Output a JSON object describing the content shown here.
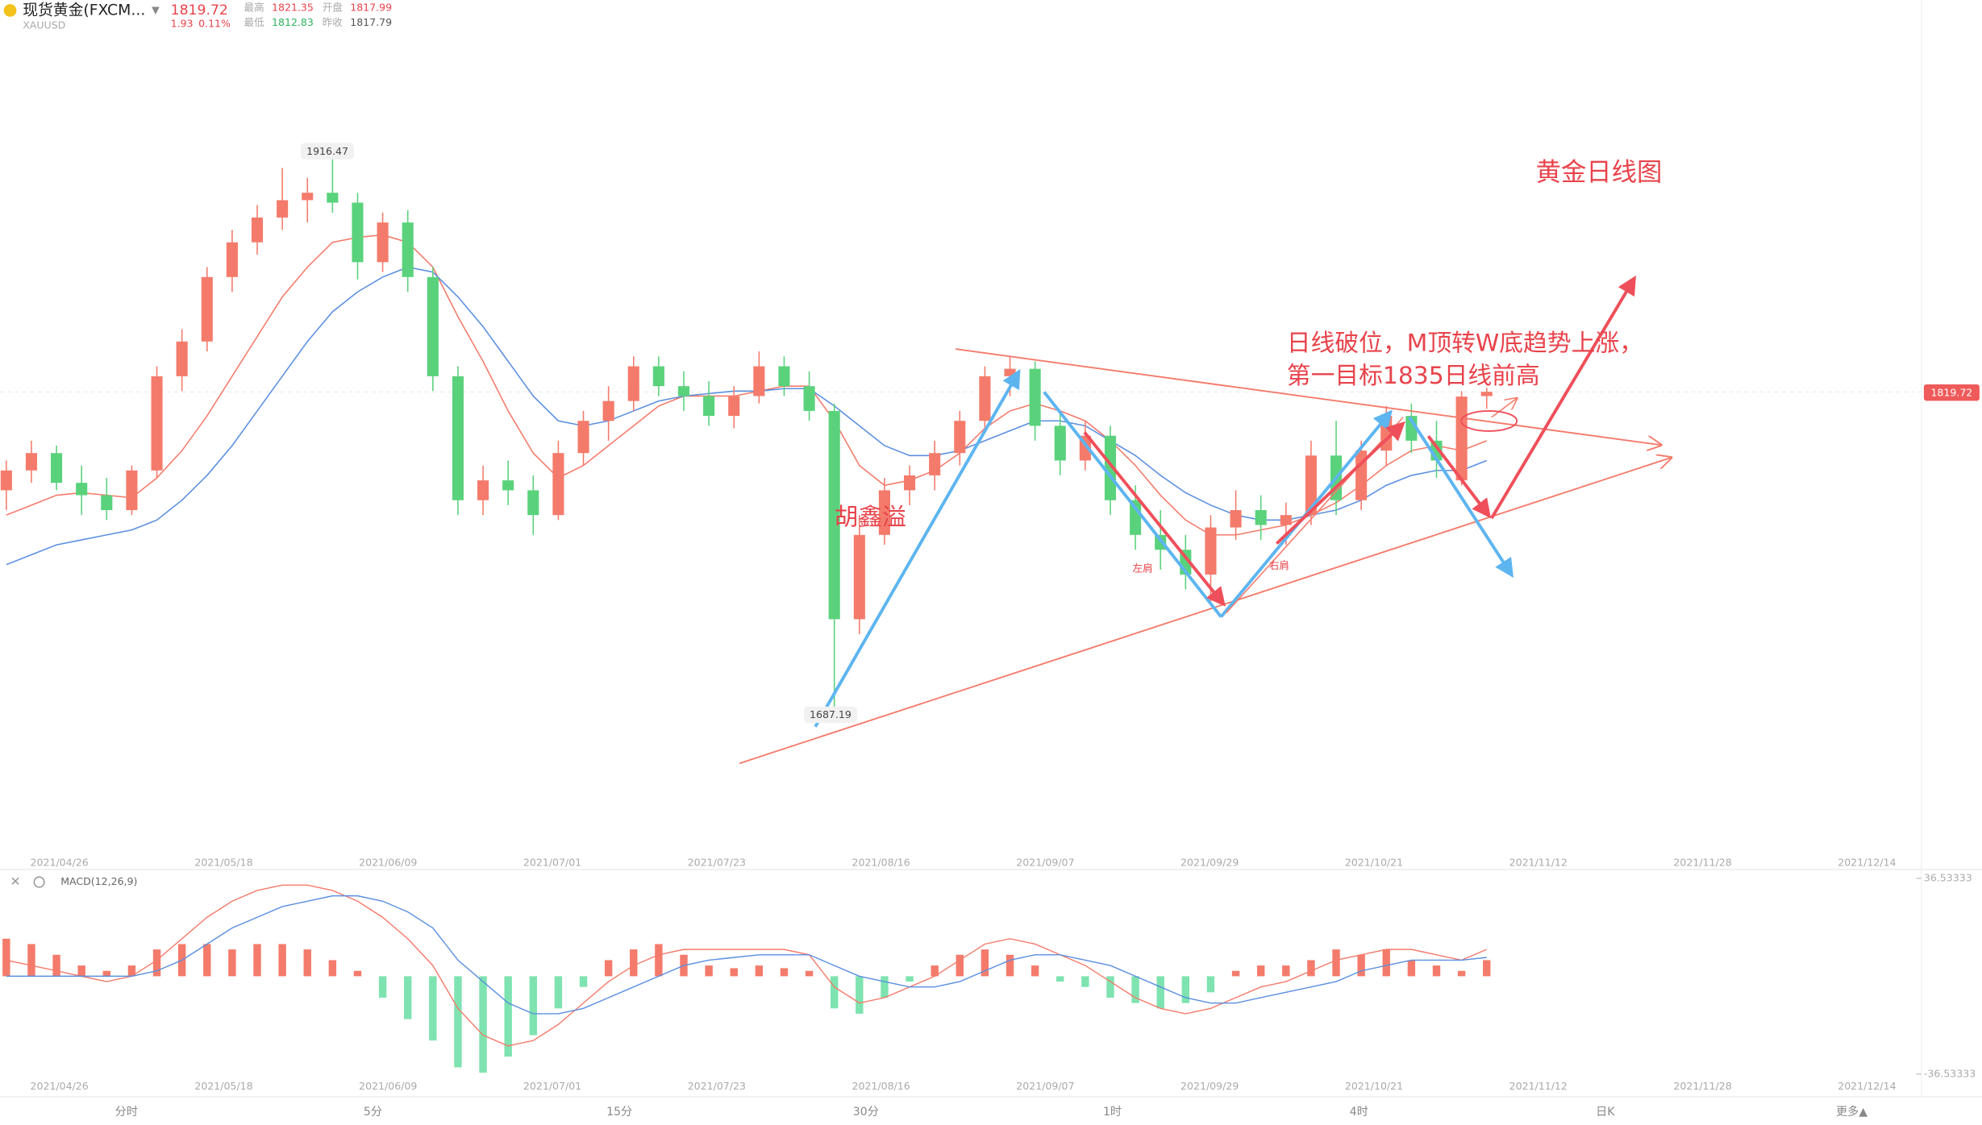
{
  "header": {
    "name": "现货黄金(FXCM...",
    "symbol": "XAUUSD",
    "price": 1819.72,
    "change": 1.93,
    "change_pct": "0.11%",
    "high_label": "最高",
    "high": 1821.35,
    "open_label": "开盘",
    "open": 1817.99,
    "low_label": "最低",
    "low": 1812.83,
    "prev_label": "昨收",
    "prev": 1817.79
  },
  "toolbar": {
    "timeframes": [
      "分时",
      "5分",
      "15分",
      "30分",
      "1时",
      "4时",
      "日K",
      "更多▲"
    ]
  },
  "chart_data": {
    "type": "candlestick",
    "up_color": "#f47b6b",
    "down_color": "#5ad27c",
    "ylim": [
      1645,
      1975
    ],
    "x_labels": [
      "2021/04/26",
      "2021/05/18",
      "2021/06/09",
      "2021/07/01",
      "2021/07/23",
      "2021/08/16",
      "2021/09/07",
      "2021/09/29",
      "2021/10/21",
      "2021/11/12",
      "2021/11/28",
      "2021/12/14"
    ],
    "ohlc": [
      [
        1780,
        1792,
        1772,
        1788
      ],
      [
        1788,
        1800,
        1783,
        1795
      ],
      [
        1795,
        1798,
        1780,
        1783
      ],
      [
        1783,
        1790,
        1770,
        1778
      ],
      [
        1778,
        1785,
        1768,
        1772
      ],
      [
        1772,
        1790,
        1770,
        1788
      ],
      [
        1788,
        1830,
        1785,
        1826
      ],
      [
        1826,
        1845,
        1820,
        1840
      ],
      [
        1840,
        1870,
        1836,
        1866
      ],
      [
        1866,
        1885,
        1860,
        1880
      ],
      [
        1880,
        1895,
        1875,
        1890
      ],
      [
        1890,
        1910,
        1885,
        1897
      ],
      [
        1897,
        1906,
        1888,
        1900
      ],
      [
        1900,
        1916.47,
        1892,
        1896
      ],
      [
        1896,
        1900,
        1865,
        1872
      ],
      [
        1872,
        1892,
        1868,
        1888
      ],
      [
        1888,
        1893,
        1860,
        1866
      ],
      [
        1866,
        1870,
        1820,
        1826
      ],
      [
        1826,
        1830,
        1770,
        1776
      ],
      [
        1776,
        1790,
        1770,
        1784
      ],
      [
        1784,
        1792,
        1774,
        1780
      ],
      [
        1780,
        1786,
        1762,
        1770
      ],
      [
        1770,
        1800,
        1768,
        1795
      ],
      [
        1795,
        1812,
        1790,
        1808
      ],
      [
        1808,
        1822,
        1800,
        1816
      ],
      [
        1816,
        1834,
        1812,
        1830
      ],
      [
        1830,
        1834,
        1818,
        1822
      ],
      [
        1822,
        1828,
        1812,
        1818
      ],
      [
        1818,
        1824,
        1806,
        1810
      ],
      [
        1810,
        1822,
        1805,
        1818
      ],
      [
        1818,
        1836,
        1815,
        1830
      ],
      [
        1830,
        1834,
        1818,
        1822
      ],
      [
        1822,
        1828,
        1808,
        1812
      ],
      [
        1812,
        1815,
        1687.19,
        1728
      ],
      [
        1728,
        1770,
        1722,
        1762
      ],
      [
        1762,
        1785,
        1758,
        1780
      ],
      [
        1780,
        1790,
        1774,
        1786
      ],
      [
        1786,
        1800,
        1780,
        1795
      ],
      [
        1795,
        1812,
        1790,
        1808
      ],
      [
        1808,
        1830,
        1805,
        1826
      ],
      [
        1826,
        1834,
        1818,
        1829
      ],
      [
        1829,
        1832,
        1800,
        1806
      ],
      [
        1806,
        1812,
        1786,
        1792
      ],
      [
        1792,
        1808,
        1788,
        1802
      ],
      [
        1802,
        1806,
        1770,
        1776
      ],
      [
        1776,
        1782,
        1756,
        1762
      ],
      [
        1762,
        1772,
        1748,
        1756
      ],
      [
        1756,
        1762,
        1740,
        1746
      ],
      [
        1746,
        1770,
        1735,
        1765
      ],
      [
        1765,
        1780,
        1760,
        1772
      ],
      [
        1772,
        1778,
        1760,
        1766
      ],
      [
        1766,
        1775,
        1758,
        1770
      ],
      [
        1770,
        1800,
        1766,
        1794
      ],
      [
        1794,
        1808,
        1770,
        1776
      ],
      [
        1776,
        1800,
        1772,
        1796
      ],
      [
        1796,
        1814,
        1790,
        1810
      ],
      [
        1810,
        1815,
        1795,
        1800
      ],
      [
        1800,
        1808,
        1785,
        1792
      ],
      [
        1784,
        1820,
        1782,
        1817.79
      ],
      [
        1817.99,
        1821.35,
        1812.83,
        1819.72
      ]
    ],
    "ma": [
      {
        "color": "#f47b6b",
        "values": [
          1770,
          1774,
          1778,
          1779,
          1778,
          1777,
          1785,
          1796,
          1810,
          1826,
          1842,
          1858,
          1870,
          1880,
          1882,
          1883,
          1880,
          1870,
          1850,
          1832,
          1812,
          1795,
          1785,
          1790,
          1798,
          1806,
          1814,
          1818,
          1818,
          1818,
          1820,
          1822,
          1822,
          1808,
          1790,
          1782,
          1784,
          1788,
          1795,
          1805,
          1812,
          1815,
          1812,
          1808,
          1800,
          1790,
          1778,
          1768,
          1762,
          1762,
          1764,
          1766,
          1770,
          1775,
          1782,
          1790,
          1796,
          1798,
          1796,
          1800
        ]
      },
      {
        "color": "#5b8fe0",
        "values": [
          1750,
          1754,
          1758,
          1760,
          1762,
          1764,
          1768,
          1776,
          1786,
          1798,
          1812,
          1826,
          1840,
          1852,
          1860,
          1866,
          1870,
          1868,
          1858,
          1846,
          1832,
          1818,
          1808,
          1806,
          1808,
          1812,
          1816,
          1818,
          1819,
          1820,
          1820,
          1821,
          1821,
          1814,
          1806,
          1798,
          1794,
          1794,
          1796,
          1800,
          1804,
          1808,
          1808,
          1806,
          1800,
          1794,
          1786,
          1779,
          1774,
          1770,
          1768,
          1768,
          1770,
          1772,
          1776,
          1782,
          1786,
          1788,
          1788,
          1792
        ]
      }
    ],
    "annotations": {
      "title": "黄金日线图",
      "line1": "日线破位，M顶转W底趋势上涨，",
      "line2": "第一目标1835日线前高",
      "author": "胡鑫溢",
      "left_shoulder": "左肩",
      "right_shoulder": "右肩"
    },
    "macd": {
      "label": "MACD(12,26,9)",
      "ylim": [
        -36.53333,
        36.53333
      ],
      "yticks": [
        -36.53333,
        36.53333
      ],
      "histogram": [
        14,
        12,
        8,
        4,
        2,
        4,
        10,
        12,
        12,
        10,
        12,
        12,
        10,
        6,
        2,
        -8,
        -16,
        -24,
        -34,
        -36,
        -30,
        -22,
        -12,
        -4,
        6,
        10,
        12,
        8,
        4,
        3,
        4,
        3,
        2,
        -12,
        -14,
        -8,
        -2,
        4,
        8,
        10,
        8,
        4,
        -2,
        -4,
        -8,
        -10,
        -12,
        -10,
        -6,
        2,
        4,
        4,
        6,
        10,
        8,
        10,
        6,
        4,
        2,
        6
      ],
      "dif": [
        6,
        4,
        2,
        0,
        -2,
        0,
        6,
        14,
        22,
        28,
        32,
        34,
        34,
        32,
        28,
        22,
        14,
        4,
        -12,
        -22,
        -26,
        -24,
        -18,
        -10,
        -2,
        4,
        8,
        10,
        10,
        10,
        10,
        10,
        8,
        -4,
        -10,
        -8,
        -4,
        0,
        6,
        12,
        14,
        12,
        8,
        4,
        -2,
        -8,
        -12,
        -14,
        -12,
        -8,
        -4,
        -2,
        2,
        6,
        8,
        10,
        10,
        8,
        6,
        10
      ],
      "dea": [
        0,
        0,
        0,
        0,
        0,
        0,
        2,
        6,
        12,
        18,
        22,
        26,
        28,
        30,
        30,
        28,
        24,
        18,
        6,
        -2,
        -10,
        -14,
        -14,
        -12,
        -8,
        -4,
        0,
        4,
        6,
        7,
        8,
        8,
        8,
        4,
        0,
        -2,
        -4,
        -4,
        -2,
        2,
        6,
        8,
        8,
        6,
        4,
        0,
        -4,
        -8,
        -10,
        -10,
        -8,
        -6,
        -4,
        -2,
        2,
        4,
        6,
        6,
        6,
        7
      ]
    }
  }
}
